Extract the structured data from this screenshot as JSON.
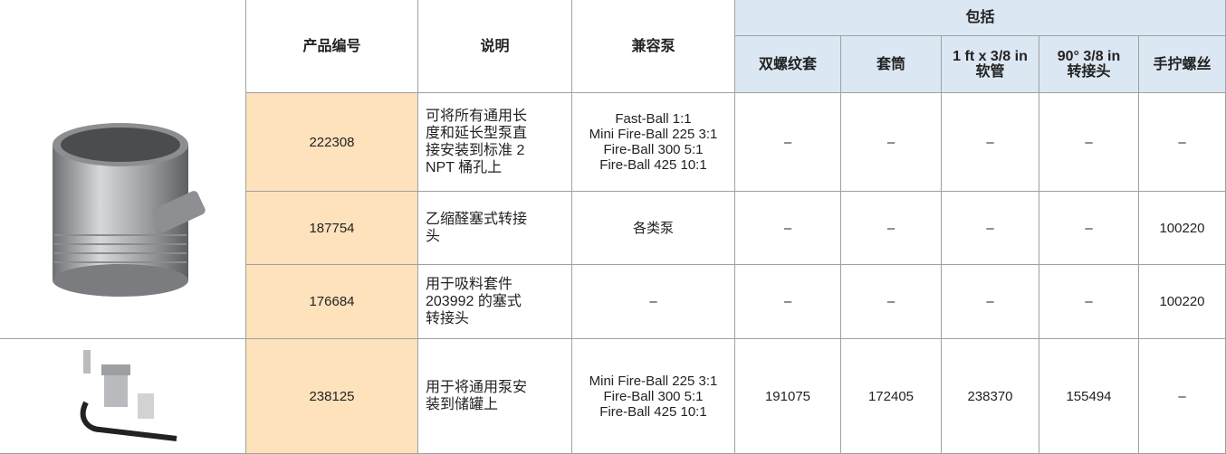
{
  "header": {
    "product_number": "产品编号",
    "description": "说明",
    "compatible_pumps": "兼容泵",
    "includes": "包括",
    "includes_columns": [
      [
        "双螺纹套"
      ],
      [
        "套筒"
      ],
      [
        "1 ft x 3/8 in",
        "软管"
      ],
      [
        "90° 3/8 in",
        "转接头"
      ],
      [
        "手拧螺丝"
      ]
    ]
  },
  "rows": [
    {
      "product_number": "222308",
      "description": "可将所有通用长度和延长型泵直接安装到标准 2 NPT 桶孔上",
      "compatible_pumps": [
        "Fast-Ball 1:1",
        "Mini Fire-Ball 225 3:1",
        "Fire-Ball 300 5:1",
        "Fire-Ball 425 10:1"
      ],
      "includes": [
        "–",
        "–",
        "–",
        "–",
        "–"
      ]
    },
    {
      "product_number": "187754",
      "description": "乙缩醛塞式转接头",
      "compatible_pumps": [
        "各类泵"
      ],
      "includes": [
        "–",
        "–",
        "–",
        "–",
        "100220"
      ]
    },
    {
      "product_number": "176684",
      "description": "用于吸料套件 203992 的塞式转接头",
      "compatible_pumps": [
        "–"
      ],
      "includes": [
        "–",
        "–",
        "–",
        "–",
        "100220"
      ]
    },
    {
      "product_number": "238125",
      "description": "用于将通用泵安装到储罐上",
      "compatible_pumps": [
        "Mini Fire-Ball 225 3:1",
        "Fire-Ball 300 5:1",
        "Fire-Ball 425 10:1"
      ],
      "includes": [
        "191075",
        "172405",
        "238370",
        "155494",
        "–"
      ]
    }
  ]
}
